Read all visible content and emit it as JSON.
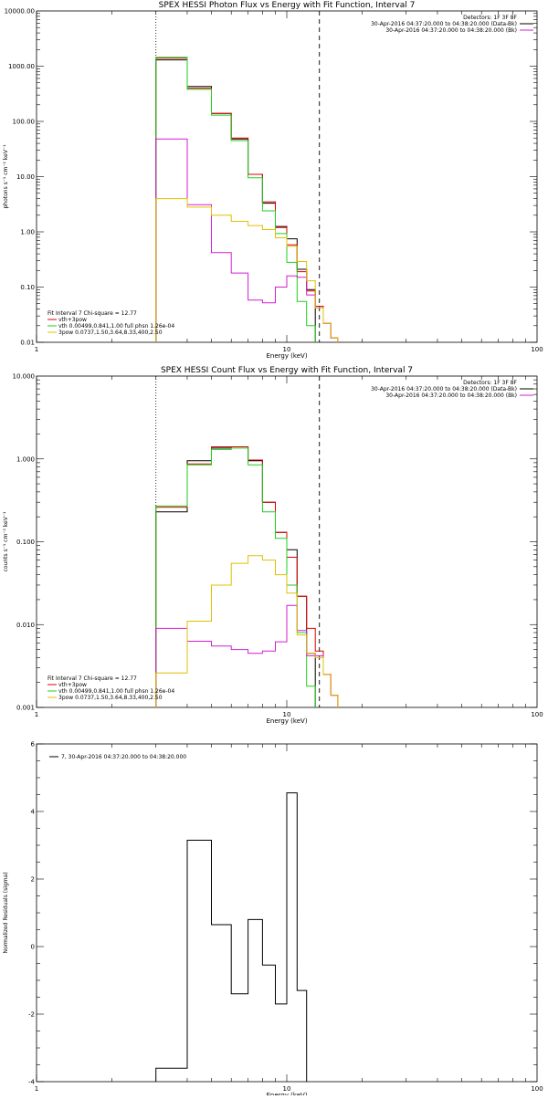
{
  "chart_data": [
    {
      "type": "line",
      "title": "SPEX HESSI Photon Flux vs Energy with Fit Function, Interval 7",
      "xlabel": "Energy (keV)",
      "ylabel": "photons s⁻¹ cm⁻² keV⁻¹",
      "xscale": "log",
      "yscale": "log",
      "xlim": [
        1,
        100
      ],
      "ylim": [
        0.01,
        10000
      ],
      "x_ticks": [
        {
          "v": 1,
          "label": "1"
        },
        {
          "v": 10,
          "label": "10"
        },
        {
          "v": 100,
          "label": "100"
        }
      ],
      "y_ticks": [
        {
          "v": 0.01,
          "label": "0.01"
        },
        {
          "v": 0.1,
          "label": "0.10"
        },
        {
          "v": 1,
          "label": "1.00"
        },
        {
          "v": 10,
          "label": "10.00"
        },
        {
          "v": 100,
          "label": "100.00"
        },
        {
          "v": 1000,
          "label": "1000.00"
        },
        {
          "v": 10000,
          "label": "10000.00"
        }
      ],
      "vlines": [
        {
          "x": 3.0,
          "style": "dotted",
          "color": "#000000"
        },
        {
          "x": 13.5,
          "style": "dashed",
          "color": "#000000"
        }
      ],
      "header": [
        "Detectors: 1F 3F 8F",
        "30-Apr-2016 04:37:20.000 to 04:38:20.000 (Data-Bk)",
        "30-Apr-2016 04:37:20.000 to 04:38:20.000 (Bk)"
      ],
      "header_colors": [
        "",
        "#000000",
        "#d21fd2"
      ],
      "fit_header": "Fit Interval 7   Chi-square = 12.77",
      "legend": [
        {
          "label": "vth+3pow",
          "color": "#e00000"
        },
        {
          "label": "vth 0.00499,0.841,1.00  full phsn 1.26e-04",
          "color": "#1fcf1f"
        },
        {
          "label": "3pow 0.0737,1.50,3.64,8.33,400,2.50",
          "color": "#e0c000"
        }
      ],
      "bin_edges": [
        3.0,
        4.0,
        5.0,
        6.0,
        7.0,
        8.0,
        9.0,
        10.0,
        11.0,
        12.0,
        13.0,
        14.0,
        15.0,
        16.0,
        17.0,
        18.0
      ],
      "series": [
        {
          "color": "#000000",
          "values": [
            1300,
            430,
            140,
            48,
            11,
            3.3,
            1.25,
            0.75,
            0.21,
            0.09,
            null,
            null,
            null,
            null,
            null
          ]
        },
        {
          "color": "#e00000",
          "values": [
            1400,
            400,
            140,
            50,
            11,
            3.5,
            1.2,
            0.58,
            0.19,
            0.085,
            0.045,
            0.022,
            0.012,
            null,
            null
          ]
        },
        {
          "color": "#1fcf1f",
          "values": [
            1450,
            380,
            130,
            45,
            9.5,
            2.4,
            0.93,
            0.28,
            0.055,
            0.02,
            null,
            null,
            null,
            null,
            null
          ]
        },
        {
          "color": "#d21fd2",
          "values": [
            48,
            3.1,
            0.42,
            0.18,
            0.058,
            0.052,
            0.1,
            0.16,
            0.15,
            0.072,
            0.042,
            0.022,
            0.012,
            null,
            null
          ]
        },
        {
          "color": "#e0c000",
          "values": [
            4.0,
            2.8,
            2.0,
            1.55,
            1.3,
            1.1,
            0.78,
            0.55,
            0.29,
            0.13,
            0.042,
            0.022,
            0.012,
            null,
            null
          ]
        }
      ]
    },
    {
      "type": "line",
      "title": "SPEX HESSI Count Flux vs Energy with Fit Function, Interval 7",
      "xlabel": "Energy (keV)",
      "ylabel": "counts s⁻¹ cm⁻² keV⁻¹",
      "xscale": "log",
      "yscale": "log",
      "xlim": [
        1,
        100
      ],
      "ylim": [
        0.001,
        10
      ],
      "x_ticks": [
        {
          "v": 1,
          "label": "1"
        },
        {
          "v": 10,
          "label": "10"
        },
        {
          "v": 100,
          "label": "100"
        }
      ],
      "y_ticks": [
        {
          "v": 0.001,
          "label": "0.001"
        },
        {
          "v": 0.01,
          "label": "0.010"
        },
        {
          "v": 0.1,
          "label": "0.100"
        },
        {
          "v": 1,
          "label": "1.000"
        },
        {
          "v": 10,
          "label": "10.000"
        }
      ],
      "vlines": [
        {
          "x": 3.0,
          "style": "dotted",
          "color": "#000000"
        },
        {
          "x": 13.5,
          "style": "dashed",
          "color": "#000000"
        }
      ],
      "header": [
        "Detectors: 1F 3F 8F",
        "30-Apr-2016 04:37:20.000 to 04:38:20.000 (Data-Bk)",
        "30-Apr-2016 04:37:20.000 to 04:38:20.000 (Bk)"
      ],
      "header_colors": [
        "",
        "#000000",
        "#d21fd2"
      ],
      "fit_header": "Fit Interval 7   Chi-square = 12.77",
      "legend": [
        {
          "label": "vth+3pow",
          "color": "#e00000"
        },
        {
          "label": "vth 0.00499,0.841,1.00  full phsn 1.26e-04",
          "color": "#1fcf1f"
        },
        {
          "label": "3pow 0.0737,1.50,3.64,8.33,400,2.50",
          "color": "#e0c000"
        }
      ],
      "bin_edges": [
        3.0,
        4.0,
        5.0,
        6.0,
        7.0,
        8.0,
        9.0,
        10.0,
        11.0,
        12.0,
        13.0,
        14.0,
        15.0,
        16.0,
        17.0,
        18.0
      ],
      "series": [
        {
          "color": "#000000",
          "values": [
            0.23,
            0.95,
            1.35,
            1.4,
            0.95,
            0.3,
            0.13,
            0.08,
            0.022,
            0.0045,
            null,
            null,
            null,
            null,
            null
          ]
        },
        {
          "color": "#e00000",
          "values": [
            0.26,
            0.87,
            1.4,
            1.4,
            0.97,
            0.3,
            0.13,
            0.065,
            0.022,
            0.009,
            0.0048,
            0.0025,
            0.0014,
            null,
            null
          ]
        },
        {
          "color": "#1fcf1f",
          "values": [
            0.27,
            0.85,
            1.3,
            1.35,
            0.85,
            0.23,
            0.11,
            0.03,
            0.008,
            0.0018,
            null,
            null,
            null,
            null,
            null
          ]
        },
        {
          "color": "#d21fd2",
          "values": [
            0.009,
            0.0063,
            0.0055,
            0.005,
            0.0045,
            0.0048,
            0.0062,
            0.017,
            0.0085,
            0.0042,
            0.0042,
            0.0025,
            0.0014,
            null,
            null
          ]
        },
        {
          "color": "#e0c000",
          "values": [
            0.0026,
            0.011,
            0.03,
            0.055,
            0.068,
            0.06,
            0.04,
            0.024,
            0.0075,
            0.0045,
            0.004,
            0.0025,
            0.0014,
            null,
            null
          ]
        }
      ]
    },
    {
      "type": "line",
      "title": "",
      "xlabel": "Energy (keV)",
      "ylabel": "Normalized Residuals (sigma)",
      "xscale": "log",
      "yscale": "linear",
      "xlim": [
        1,
        100
      ],
      "ylim": [
        -4,
        6
      ],
      "x_ticks": [
        {
          "v": 1,
          "label": "1"
        },
        {
          "v": 10,
          "label": "10"
        },
        {
          "v": 100,
          "label": "100"
        }
      ],
      "y_ticks": [
        {
          "v": -4,
          "label": "-4"
        },
        {
          "v": -2,
          "label": "-2"
        },
        {
          "v": 0,
          "label": "0"
        },
        {
          "v": 2,
          "label": "2"
        },
        {
          "v": 4,
          "label": "4"
        },
        {
          "v": 6,
          "label": "6"
        }
      ],
      "legend_text": "7, 30-Apr-2016 04:37:20.000 to 04:38:20.000",
      "bin_edges": [
        3.0,
        4.0,
        5.0,
        6.0,
        7.0,
        8.0,
        9.0,
        10.0,
        11.0,
        12.0,
        13.0,
        14.0,
        15.0,
        16.0,
        17.0,
        18.0
      ],
      "series": [
        {
          "color": "#000000",
          "values": [
            -3.6,
            3.15,
            0.65,
            -1.4,
            0.8,
            -0.55,
            -1.7,
            4.55,
            -1.3,
            null,
            null,
            null,
            null,
            null,
            null
          ]
        }
      ]
    }
  ]
}
